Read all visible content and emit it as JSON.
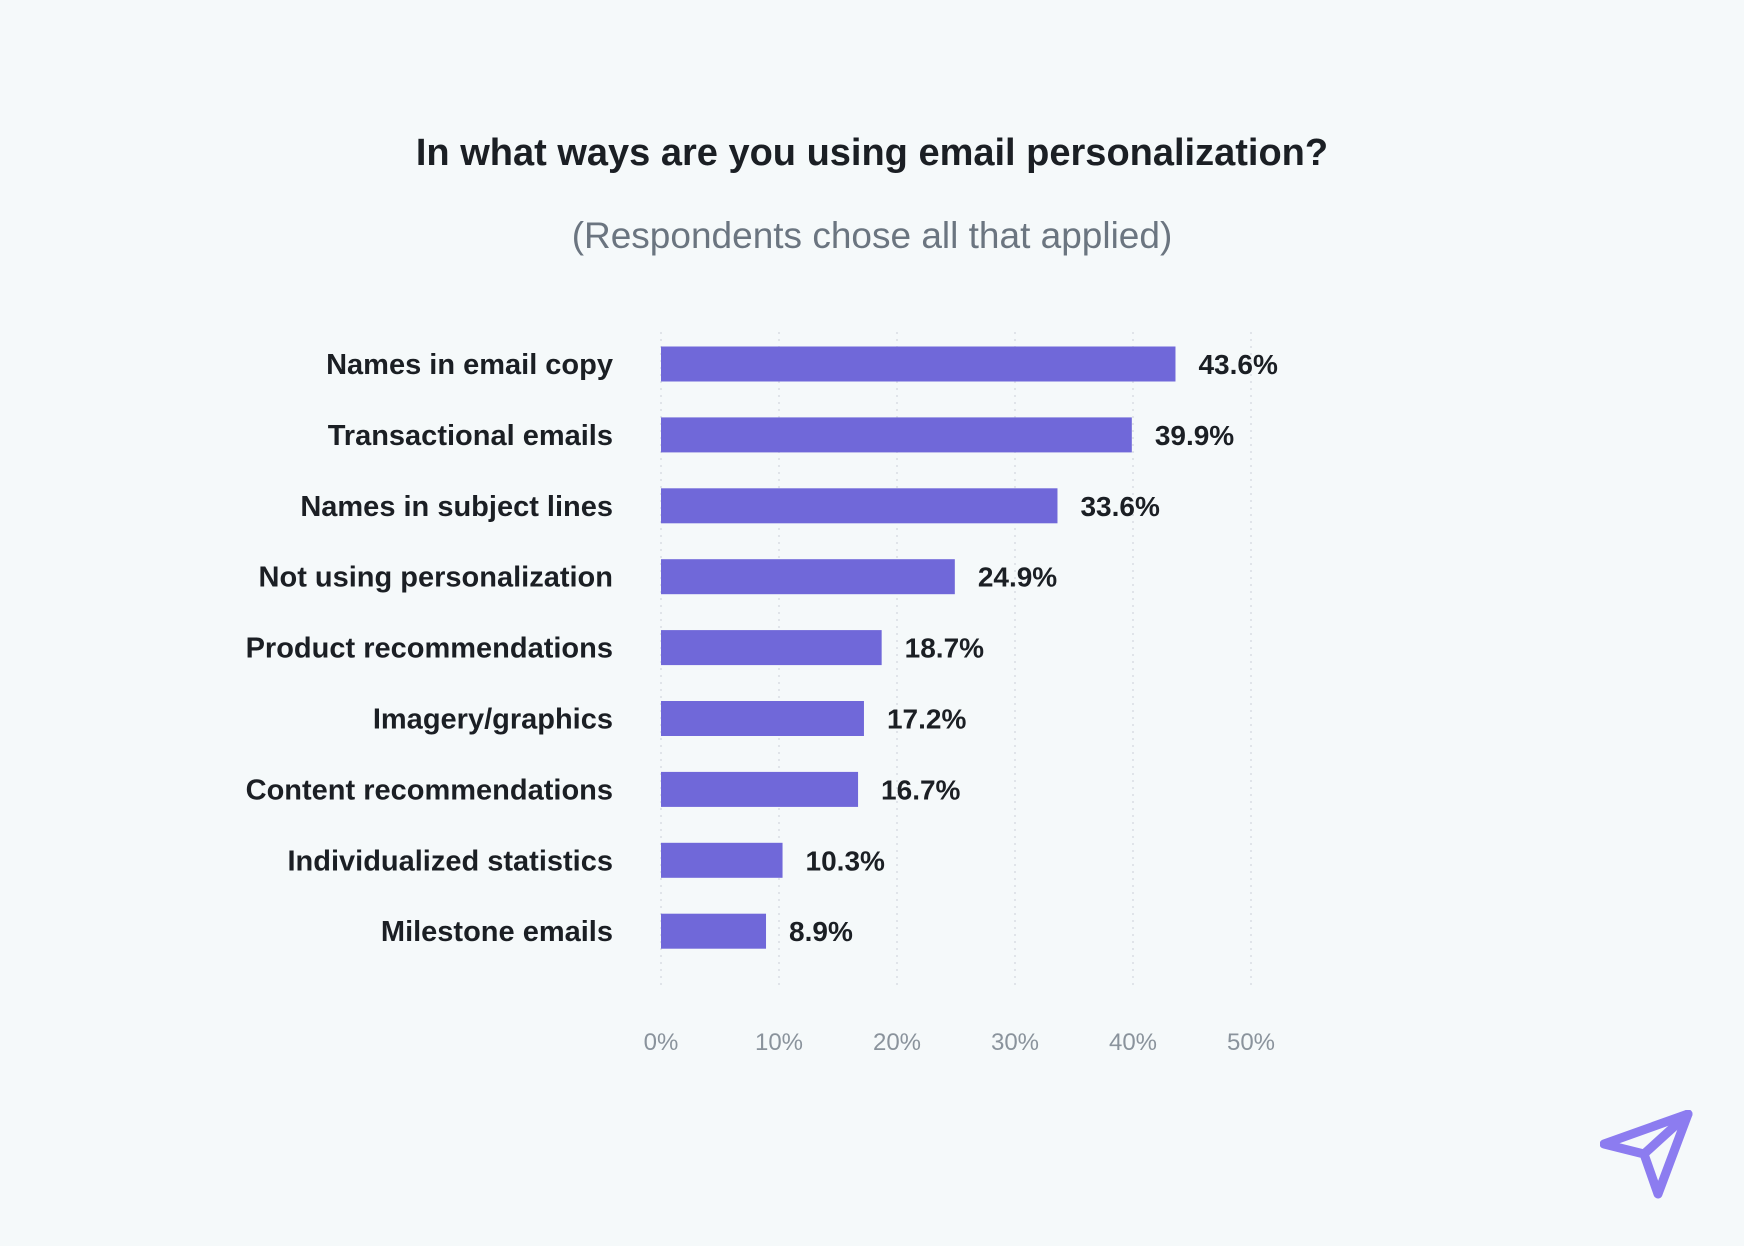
{
  "chart_data": {
    "type": "bar",
    "orientation": "horizontal",
    "title": "In what ways are you using email personalization?",
    "subtitle": "(Respondents chose all that applied)",
    "categories": [
      "Names in email copy",
      "Transactional emails",
      "Names in subject lines",
      "Not using personalization",
      "Product recommendations",
      "Imagery/graphics",
      "Content recommendations",
      "Individualized statistics",
      "Milestone emails"
    ],
    "values": [
      43.6,
      39.9,
      33.6,
      24.9,
      18.7,
      17.2,
      16.7,
      10.3,
      8.9
    ],
    "value_labels": [
      "43.6%",
      "39.9%",
      "33.6%",
      "24.9%",
      "18.7%",
      "17.2%",
      "16.7%",
      "10.3%",
      "8.9%"
    ],
    "xlim": [
      0,
      50
    ],
    "xticks": [
      0,
      10,
      20,
      30,
      40,
      50
    ],
    "xtick_labels": [
      "0%",
      "10%",
      "20%",
      "30%",
      "40%",
      "50%"
    ],
    "grid": true,
    "legend": "none",
    "colors": {
      "bar": "#7068d9",
      "grid": "#d9dee3",
      "category_text": "#1b1f24",
      "value_text": "#1b1f24",
      "tick_text": "#8a939c",
      "logo": "#8c7cf0"
    }
  },
  "brand": {
    "logo_icon": "paper-plane-icon"
  }
}
